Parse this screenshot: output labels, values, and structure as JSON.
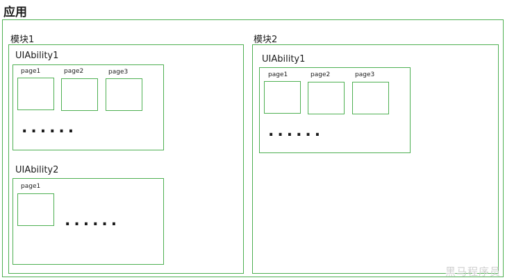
{
  "app_title": "应用",
  "module1": {
    "title": "模块1",
    "ability1": {
      "title": "UIAbility1",
      "pages": [
        "page1",
        "page2",
        "page3"
      ],
      "ellipsis": "......"
    },
    "ability2": {
      "title": "UIAbility2",
      "pages": [
        "page1"
      ],
      "ellipsis": "......"
    }
  },
  "module2": {
    "title": "模块2",
    "ability1": {
      "title": "UIAbility1",
      "pages": [
        "page1",
        "page2",
        "page3"
      ],
      "ellipsis": "......"
    }
  },
  "watermark": "黑马程序员",
  "colors": {
    "border": "#4caf50",
    "text": "#1a1a1a"
  }
}
